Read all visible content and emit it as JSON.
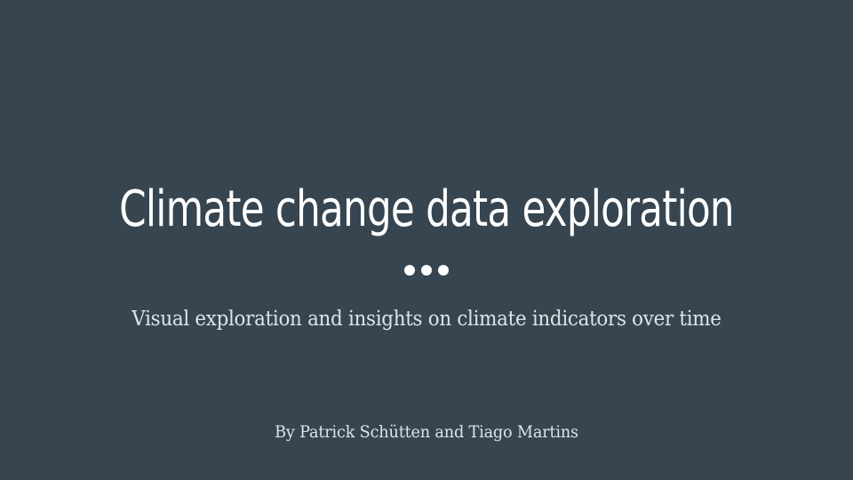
{
  "slide": {
    "title": "Climate change data exploration",
    "subtitle": "Visual exploration and insights on climate indicators over time",
    "byline": "By Patrick Schütten and Tiago Martins",
    "background_color": "#36454f",
    "title_color": "#ffffff",
    "text_color": "#dfe3e6",
    "divider_icon": "ellipsis-dots-icon"
  }
}
